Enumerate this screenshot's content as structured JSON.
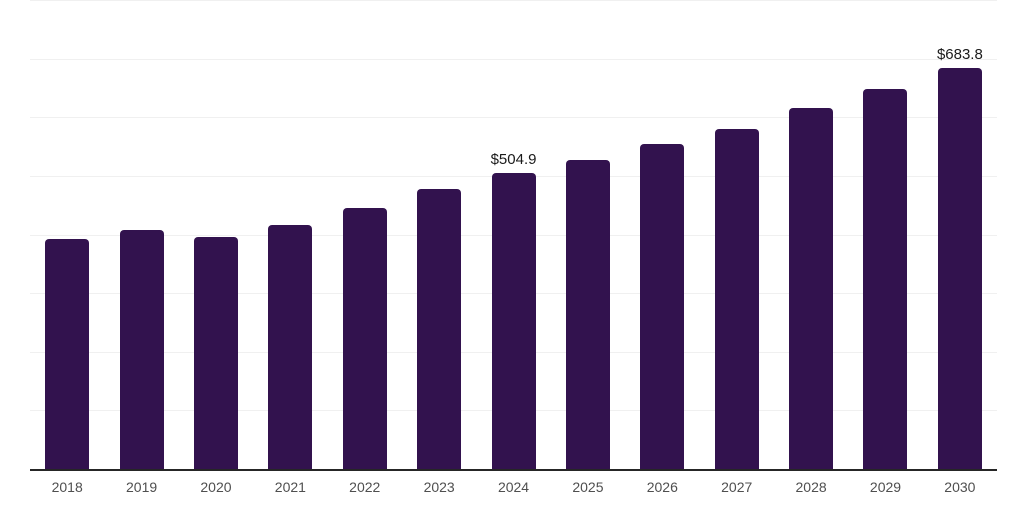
{
  "colors": {
    "background": "#ffffff",
    "bar_fill": "#32124e",
    "gridline": "#f0f0f0",
    "axis_line": "#262626",
    "tick_label": "#4f4f4f",
    "value_label": "#1a1a1a"
  },
  "chart_data": {
    "type": "bar",
    "title": "",
    "xlabel": "",
    "ylabel": "",
    "categories": [
      "2018",
      "2019",
      "2020",
      "2021",
      "2022",
      "2023",
      "2024",
      "2025",
      "2026",
      "2027",
      "2028",
      "2029",
      "2030"
    ],
    "values": [
      392.5,
      408.0,
      396.0,
      416.5,
      445.5,
      478.0,
      504.9,
      527.5,
      554.0,
      580.0,
      615.0,
      649.0,
      683.8
    ],
    "data_labels": [
      "",
      "",
      "",
      "",
      "",
      "",
      "$504.9",
      "",
      "",
      "",
      "",
      "",
      "$683.8"
    ],
    "labeled_points": [
      {
        "category": "2024",
        "label": "$504.9",
        "value": 504.9
      },
      {
        "category": "2030",
        "label": "$683.8",
        "value": 683.8
      }
    ],
    "ylim": [
      0,
      800
    ],
    "gridline_step": 100,
    "grid": true,
    "y_tick_labels_visible": false,
    "legend_position": "none",
    "currency_prefix": "$"
  }
}
